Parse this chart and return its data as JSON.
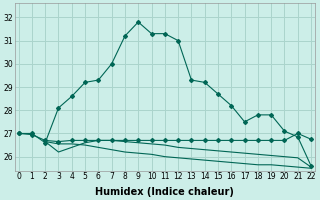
{
  "title": "",
  "xlabel": "Humidex (Indice chaleur)",
  "ylabel": "",
  "background_color": "#cceee8",
  "grid_color": "#aad4cc",
  "line_color": "#006655",
  "x_ticks": [
    0,
    1,
    2,
    3,
    4,
    5,
    6,
    7,
    8,
    9,
    10,
    11,
    12,
    13,
    14,
    15,
    16,
    17,
    18,
    19,
    20,
    21,
    22
  ],
  "y_ticks": [
    26,
    27,
    28,
    29,
    30,
    31,
    32
  ],
  "ylim": [
    25.4,
    32.6
  ],
  "xlim": [
    -0.3,
    22.3
  ],
  "series1_x": [
    0,
    1,
    2,
    3,
    4,
    5,
    6,
    7,
    8,
    9,
    10,
    11,
    12,
    13,
    14,
    15,
    16,
    17,
    18,
    19,
    20,
    21,
    22
  ],
  "series1_y": [
    27.0,
    27.0,
    26.6,
    28.1,
    28.6,
    29.2,
    29.3,
    30.0,
    31.2,
    31.8,
    31.3,
    31.3,
    31.0,
    29.3,
    29.2,
    28.7,
    28.2,
    27.5,
    27.8,
    27.8,
    27.1,
    26.85,
    25.6
  ],
  "series2_x": [
    0,
    1,
    2,
    3,
    4,
    5,
    6,
    7,
    8,
    9,
    10,
    11,
    12,
    13,
    14,
    15,
    16,
    17,
    18,
    19,
    20,
    21,
    22
  ],
  "series2_y": [
    27.0,
    26.95,
    26.7,
    26.65,
    26.7,
    26.7,
    26.7,
    26.7,
    26.7,
    26.7,
    26.7,
    26.7,
    26.7,
    26.7,
    26.7,
    26.7,
    26.7,
    26.7,
    26.7,
    26.7,
    26.7,
    27.0,
    26.75
  ],
  "series3_x": [
    2,
    3,
    4,
    5,
    6,
    7,
    8,
    9,
    10,
    11,
    12,
    13,
    14,
    15,
    16,
    17,
    18,
    19,
    20,
    21,
    22
  ],
  "series3_y": [
    26.65,
    26.55,
    26.55,
    26.5,
    26.4,
    26.3,
    26.2,
    26.15,
    26.1,
    26.0,
    25.95,
    25.9,
    25.85,
    25.8,
    25.75,
    25.7,
    25.65,
    25.65,
    25.6,
    25.55,
    25.5
  ],
  "series4_x": [
    2,
    3,
    4,
    5,
    6,
    7,
    8,
    9,
    10,
    11,
    12,
    13,
    14,
    15,
    16,
    17,
    18,
    19,
    20,
    21,
    22
  ],
  "series4_y": [
    26.65,
    26.2,
    26.4,
    26.6,
    26.7,
    26.7,
    26.65,
    26.6,
    26.55,
    26.5,
    26.4,
    26.35,
    26.3,
    26.25,
    26.2,
    26.15,
    26.1,
    26.05,
    26.0,
    25.95,
    25.55
  ],
  "marker": "D",
  "markersize": 2.0,
  "linewidth": 0.8,
  "tick_fontsize": 5.5,
  "xlabel_fontsize": 7
}
